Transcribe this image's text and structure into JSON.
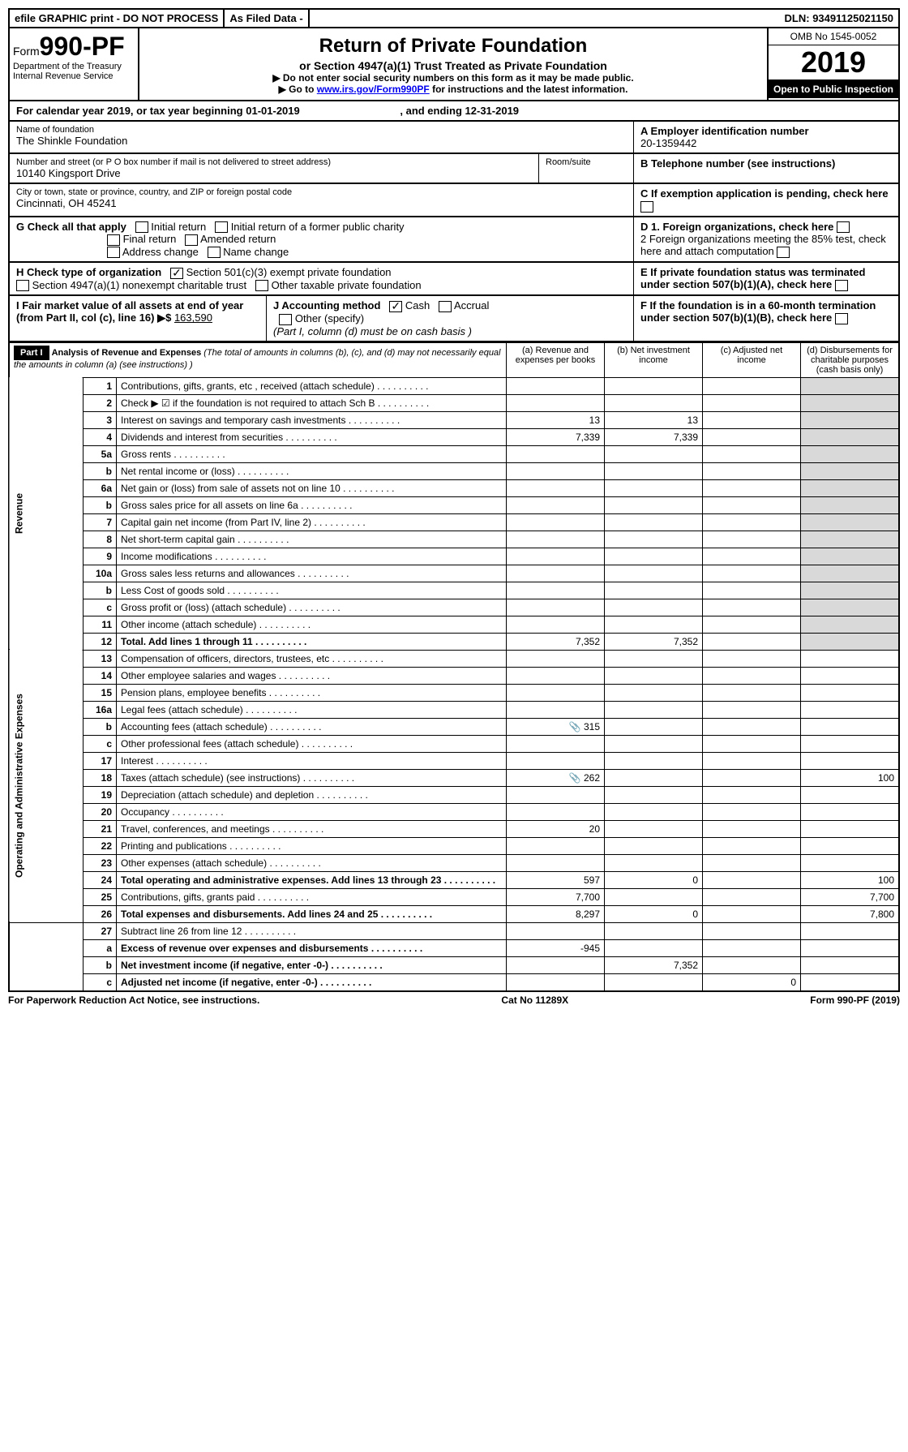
{
  "topbar": {
    "efile": "efile GRAPHIC print - DO NOT PROCESS",
    "asfiled": "As Filed Data -",
    "dln_label": "DLN:",
    "dln_value": "93491125021150"
  },
  "header": {
    "form_prefix": "Form",
    "form_number": "990-PF",
    "dept": "Department of the Treasury",
    "irs": "Internal Revenue Service",
    "title": "Return of Private Foundation",
    "subtitle": "or Section 4947(a)(1) Trust Treated as Private Foundation",
    "note1": "▶ Do not enter social security numbers on this form as it may be made public.",
    "note2_pre": "▶ Go to ",
    "note2_link": "www.irs.gov/Form990PF",
    "note2_post": " for instructions and the latest information.",
    "omb": "OMB No 1545-0052",
    "year": "2019",
    "open": "Open to Public Inspection"
  },
  "calendar": {
    "text_pre": "For calendar year 2019, or tax year beginning ",
    "begin": "01-01-2019",
    "text_mid": " , and ending ",
    "end": "12-31-2019"
  },
  "entity": {
    "name_label": "Name of foundation",
    "name": "The Shinkle Foundation",
    "addr_label": "Number and street (or P O  box number if mail is not delivered to street address)",
    "addr": "10140 Kingsport Drive",
    "room_label": "Room/suite",
    "city_label": "City or town, state or province, country, and ZIP or foreign postal code",
    "city": "Cincinnati, OH  45241",
    "ein_label": "A Employer identification number",
    "ein": "20-1359442",
    "tel_label": "B Telephone number (see instructions)",
    "c_label": "C If exemption application is pending, check here"
  },
  "checks": {
    "g_label": "G Check all that apply",
    "g_opts": [
      "Initial return",
      "Initial return of a former public charity",
      "Final return",
      "Amended return",
      "Address change",
      "Name change"
    ],
    "h_label": "H Check type of organization",
    "h_opt1": "Section 501(c)(3) exempt private foundation",
    "h_opt2": "Section 4947(a)(1) nonexempt charitable trust",
    "h_opt3": "Other taxable private foundation",
    "i_label": "I Fair market value of all assets at end of year (from Part II, col  (c), line 16) ▶$",
    "i_value": "163,590",
    "j_label": "J Accounting method",
    "j_cash": "Cash",
    "j_accrual": "Accrual",
    "j_other": "Other (specify)",
    "j_note": "(Part I, column (d) must be on cash basis )",
    "d1": "D 1. Foreign organizations, check here",
    "d2": "2  Foreign organizations meeting the 85% test, check here and attach computation",
    "e": "E  If private foundation status was terminated under section 507(b)(1)(A), check here",
    "f": "F  If the foundation is in a 60-month termination under section 507(b)(1)(B), check here"
  },
  "part1": {
    "label": "Part I",
    "title": "Analysis of Revenue and Expenses",
    "title_note": " (The total of amounts in columns (b), (c), and (d) may not necessarily equal the amounts in column (a) (see instructions) )",
    "cols": {
      "a": "(a) Revenue and expenses per books",
      "b": "(b) Net investment income",
      "c": "(c) Adjusted net income",
      "d": "(d) Disbursements for charitable purposes (cash basis only)"
    }
  },
  "revenue_label": "Revenue",
  "expenses_label": "Operating and Administrative Expenses",
  "lines": {
    "1": {
      "n": "1",
      "d": "Contributions, gifts, grants, etc , received (attach schedule)"
    },
    "2": {
      "n": "2",
      "d": "Check ▶ ☑ if the foundation is not required to attach Sch  B"
    },
    "3": {
      "n": "3",
      "d": "Interest on savings and temporary cash investments",
      "a": "13",
      "b": "13"
    },
    "4": {
      "n": "4",
      "d": "Dividends and interest from securities",
      "a": "7,339",
      "b": "7,339"
    },
    "5a": {
      "n": "5a",
      "d": "Gross rents"
    },
    "5b": {
      "n": "b",
      "d": "Net rental income or (loss)"
    },
    "6a": {
      "n": "6a",
      "d": "Net gain or (loss) from sale of assets not on line 10"
    },
    "6b": {
      "n": "b",
      "d": "Gross sales price for all assets on line 6a"
    },
    "7": {
      "n": "7",
      "d": "Capital gain net income (from Part IV, line 2)"
    },
    "8": {
      "n": "8",
      "d": "Net short-term capital gain"
    },
    "9": {
      "n": "9",
      "d": "Income modifications"
    },
    "10a": {
      "n": "10a",
      "d": "Gross sales less returns and allowances"
    },
    "10b": {
      "n": "b",
      "d": "Less  Cost of goods sold"
    },
    "10c": {
      "n": "c",
      "d": "Gross profit or (loss) (attach schedule)"
    },
    "11": {
      "n": "11",
      "d": "Other income (attach schedule)"
    },
    "12": {
      "n": "12",
      "d": "Total. Add lines 1 through 11",
      "bold": true,
      "a": "7,352",
      "b": "7,352"
    },
    "13": {
      "n": "13",
      "d": "Compensation of officers, directors, trustees, etc"
    },
    "14": {
      "n": "14",
      "d": "Other employee salaries and wages"
    },
    "15": {
      "n": "15",
      "d": "Pension plans, employee benefits"
    },
    "16a": {
      "n": "16a",
      "d": "Legal fees (attach schedule)"
    },
    "16b": {
      "n": "b",
      "d": "Accounting fees (attach schedule)",
      "a": "315",
      "icon": true
    },
    "16c": {
      "n": "c",
      "d": "Other professional fees (attach schedule)"
    },
    "17": {
      "n": "17",
      "d": "Interest"
    },
    "18": {
      "n": "18",
      "d": "Taxes (attach schedule) (see instructions)",
      "a": "262",
      "dcol": "100",
      "icon": true
    },
    "19": {
      "n": "19",
      "d": "Depreciation (attach schedule) and depletion"
    },
    "20": {
      "n": "20",
      "d": "Occupancy"
    },
    "21": {
      "n": "21",
      "d": "Travel, conferences, and meetings",
      "a": "20"
    },
    "22": {
      "n": "22",
      "d": "Printing and publications"
    },
    "23": {
      "n": "23",
      "d": "Other expenses (attach schedule)"
    },
    "24": {
      "n": "24",
      "d": "Total operating and administrative expenses. Add lines 13 through 23",
      "bold": true,
      "a": "597",
      "b": "0",
      "dcol": "100"
    },
    "25": {
      "n": "25",
      "d": "Contributions, gifts, grants paid",
      "a": "7,700",
      "dcol": "7,700"
    },
    "26": {
      "n": "26",
      "d": "Total expenses and disbursements. Add lines 24 and 25",
      "bold": true,
      "a": "8,297",
      "b": "0",
      "dcol": "7,800"
    },
    "27": {
      "n": "27",
      "d": "Subtract line 26 from line 12"
    },
    "27a": {
      "n": "a",
      "d": "Excess of revenue over expenses and disbursements",
      "bold": true,
      "a": "-945"
    },
    "27b": {
      "n": "b",
      "d": "Net investment income (if negative, enter -0-)",
      "bold": true,
      "b": "7,352"
    },
    "27c": {
      "n": "c",
      "d": "Adjusted net income (if negative, enter -0-)",
      "bold": true,
      "c": "0"
    }
  },
  "footer": {
    "left": "For Paperwork Reduction Act Notice, see instructions.",
    "mid": "Cat  No  11289X",
    "right": "Form 990-PF (2019)"
  }
}
